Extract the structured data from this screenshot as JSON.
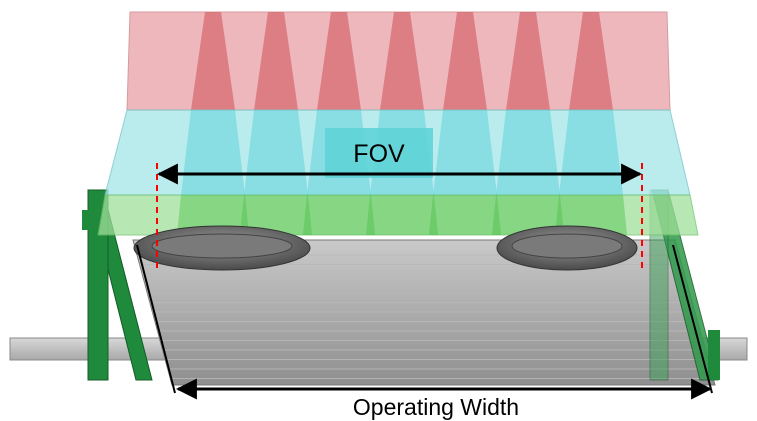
{
  "labels": {
    "fov": "FOV",
    "operating_width": "Operating Width"
  },
  "colors": {
    "fov_red": "#e8a0a6",
    "fov_red_dark": "#d45f66",
    "fov_cyan": "#a9e8ea",
    "fov_cyan_dark": "#5fd4d8",
    "fov_green": "#9fe09a",
    "frame_green": "#1f8a3c",
    "belt_gray": "#9a9a9a",
    "guide_line": "#ff0000",
    "dimension_line": "#000000"
  }
}
